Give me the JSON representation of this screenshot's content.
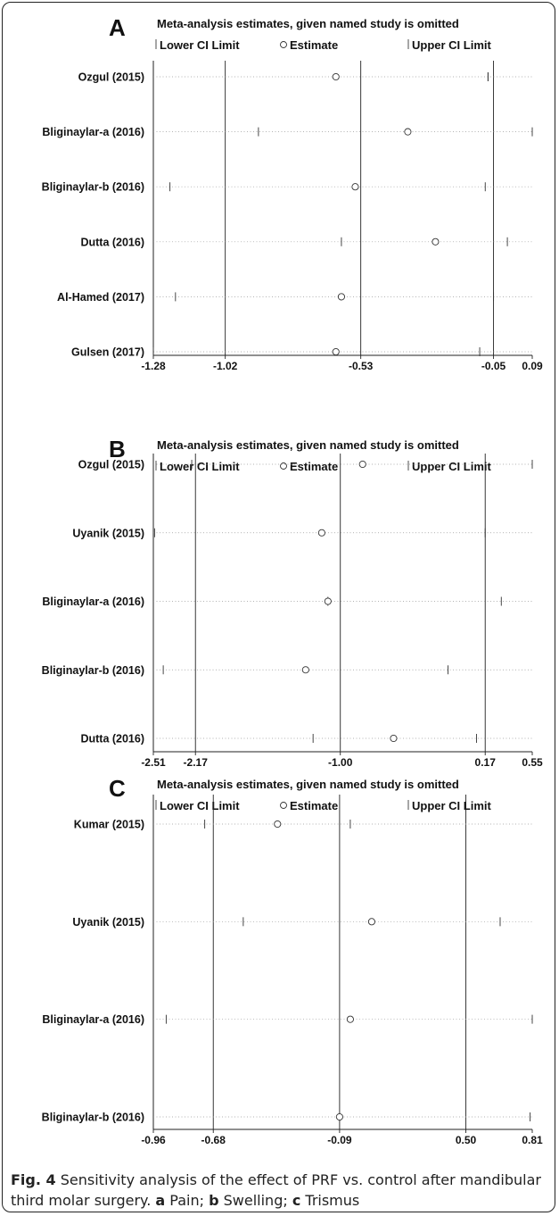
{
  "chart_data": [
    {
      "type": "forest",
      "panel_label": "A",
      "title": "Meta-analysis estimates, given named study is omitted",
      "legend": {
        "lower": "Lower CI Limit",
        "estimate": "Estimate",
        "upper": "Upper CI Limit"
      },
      "xlim": [
        -1.28,
        0.09
      ],
      "ticks": [
        -1.28,
        -1.02,
        -0.53,
        -0.05,
        0.09
      ],
      "tick_labels": [
        "-1.28",
        "-1.02",
        "-0.53",
        "-0.05",
        "0.09"
      ],
      "reference_lines": [
        -1.02,
        -0.53,
        -0.05
      ],
      "studies": [
        {
          "label": "Ozgul (2015)",
          "lower": -0.07,
          "estimate": -0.62,
          "upper": -0.07
        },
        {
          "label": "Bliginaylar-a (2016)",
          "lower": -0.9,
          "estimate": -0.36,
          "upper": 0.09
        },
        {
          "label": "Bliginaylar-b (2016)",
          "lower": -1.22,
          "estimate": -0.55,
          "upper": -0.08
        },
        {
          "label": "Dutta (2016)",
          "lower": -0.6,
          "estimate": -0.26,
          "upper": 0.0
        },
        {
          "label": "Al-Hamed (2017)",
          "lower": -1.2,
          "estimate": -0.6,
          "upper": -0.05
        },
        {
          "label": "Gulsen (2017)",
          "lower": -1.28,
          "estimate": -0.62,
          "upper": -0.1
        }
      ]
    },
    {
      "type": "forest",
      "panel_label": "B",
      "title": "Meta-analysis estimates, given named study is omitted",
      "legend": {
        "lower": "Lower CI Limit",
        "estimate": "Estimate",
        "upper": "Upper CI Limit"
      },
      "xlim": [
        -2.51,
        0.55
      ],
      "ticks": [
        -2.51,
        -2.17,
        -1.0,
        0.17,
        0.55
      ],
      "tick_labels": [
        "-2.51",
        "-2.17",
        "-1.00",
        "0.17",
        "0.55"
      ],
      "reference_lines": [
        -2.17,
        -1.0,
        0.17
      ],
      "studies": [
        {
          "label": "Ozgul (2015)",
          "lower": -2.2,
          "estimate": -0.82,
          "upper": 0.55
        },
        {
          "label": "Uyanik (2015)",
          "lower": -2.5,
          "estimate": -1.15,
          "upper": 0.17
        },
        {
          "label": "Bliginaylar-a (2016)",
          "lower": -1.1,
          "estimate": -1.1,
          "upper": 0.3
        },
        {
          "label": "Bliginaylar-b (2016)",
          "lower": -2.43,
          "estimate": -1.28,
          "upper": -0.13
        },
        {
          "label": "Dutta (2016)",
          "lower": -1.22,
          "estimate": -0.57,
          "upper": 0.1
        }
      ]
    },
    {
      "type": "forest",
      "panel_label": "C",
      "title": "Meta-analysis estimates, given named study is omitted",
      "legend": {
        "lower": "Lower CI Limit",
        "estimate": "Estimate",
        "upper": "Upper CI Limit"
      },
      "xlim": [
        -0.96,
        0.81
      ],
      "ticks": [
        -0.96,
        -0.68,
        -0.09,
        0.5,
        0.81
      ],
      "tick_labels": [
        "-0.96",
        "-0.68",
        "-0.09",
        "0.50",
        "0.81"
      ],
      "reference_lines": [
        -0.68,
        -0.09,
        0.5
      ],
      "studies": [
        {
          "label": "Kumar (2015)",
          "lower": -0.72,
          "estimate": -0.38,
          "upper": -0.04
        },
        {
          "label": "Uyanik (2015)",
          "lower": -0.54,
          "estimate": 0.06,
          "upper": 0.66
        },
        {
          "label": "Bliginaylar-a (2016)",
          "lower": -0.9,
          "estimate": -0.04,
          "upper": 0.81
        },
        {
          "label": "Bliginaylar-b (2016)",
          "lower": -0.09,
          "estimate": -0.09,
          "upper": 0.8
        }
      ]
    }
  ],
  "caption": {
    "fig": "Fig. 4",
    "text1": " Sensitivity analysis of the effect of PRF vs. control after mandibular third molar surgery. ",
    "a": "a",
    "a_text": " Pain; ",
    "b": "b",
    "b_text": " Swelling; ",
    "c": "c",
    "c_text": " Trismus"
  }
}
